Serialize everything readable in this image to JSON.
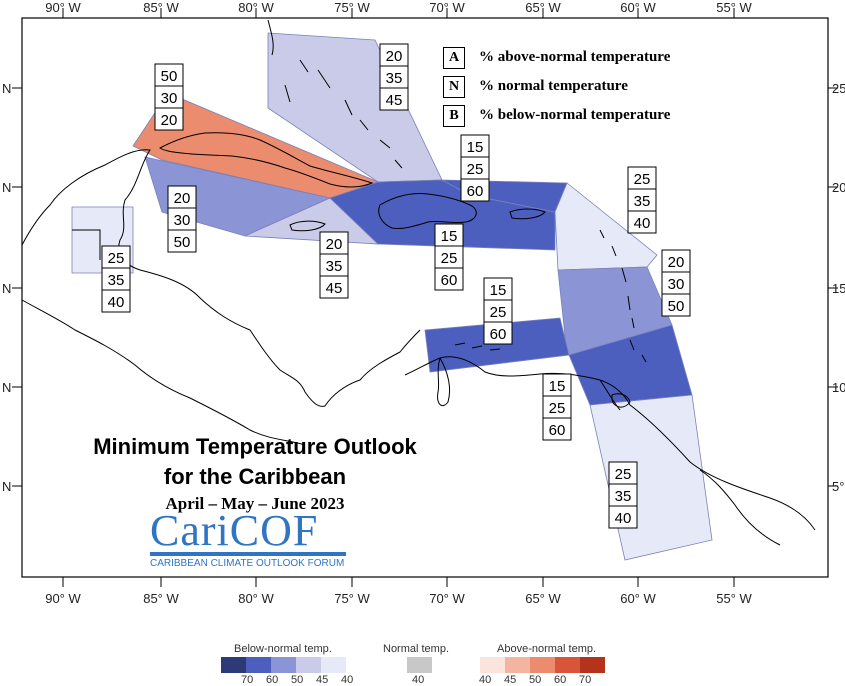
{
  "map": {
    "top_lon_labels": [
      "90° W",
      "85° W",
      "80° W",
      "75° W",
      "70° W",
      "65° W",
      "60° W",
      "55° W"
    ],
    "bottom_lon_labels": [
      "90° W",
      "85° W",
      "80° W",
      "75° W",
      "70° W",
      "65° W",
      "60° W",
      "55° W"
    ],
    "left_lat_labels": [
      "N",
      "N",
      "N",
      "N",
      "N"
    ],
    "right_lat_labels": [
      "25",
      "20",
      "15",
      "10",
      "5°"
    ]
  },
  "key": {
    "rows": [
      {
        "letter": "A",
        "text": "% above-normal temperature"
      },
      {
        "letter": "N",
        "text": "% normal temperature"
      },
      {
        "letter": "B",
        "text": "% below-normal temperature"
      }
    ]
  },
  "regions": [
    {
      "name": "bahamas",
      "color": "#c9cbe8",
      "probs": [
        "20",
        "35",
        "45"
      ]
    },
    {
      "name": "cuba",
      "color": "#ec8c6e",
      "probs": [
        "50",
        "30",
        "20"
      ]
    },
    {
      "name": "hispaniola",
      "color": "#4c5fbf",
      "probs": [
        "15",
        "25",
        "60"
      ]
    },
    {
      "name": "jamaica-cayman",
      "color": "#8b95d6",
      "probs": [
        "20",
        "30",
        "50"
      ]
    },
    {
      "name": "jamaica-south",
      "color": "#c9cbe8",
      "probs": [
        "20",
        "35",
        "45"
      ]
    },
    {
      "name": "puerto-rico",
      "color": "#4c5fbf",
      "probs": [
        "15",
        "25",
        "60"
      ]
    },
    {
      "name": "northern-leewards",
      "color": "#e6eaf8",
      "probs": [
        "25",
        "35",
        "40"
      ]
    },
    {
      "name": "windwards",
      "color": "#8b95d6",
      "probs": [
        "20",
        "30",
        "50"
      ]
    },
    {
      "name": "belize",
      "color": "#e6eaf8",
      "probs": [
        "25",
        "35",
        "40"
      ]
    },
    {
      "name": "abc-islands",
      "color": "#4c5fbf",
      "probs": [
        "15",
        "25",
        "60"
      ]
    },
    {
      "name": "trinidad-tobago",
      "color": "#4c5fbf",
      "probs": [
        "15",
        "25",
        "60"
      ]
    },
    {
      "name": "guianas",
      "color": "#e6eaf8",
      "probs": [
        "25",
        "35",
        "40"
      ]
    }
  ],
  "title": {
    "line1": "Minimum Temperature Outlook",
    "line2": "for the Caribbean",
    "dates": "April – May – June 2023"
  },
  "logo": {
    "word_part1": "Cari",
    "word_part2": "COF",
    "subtitle": "CARIBBEAN CLIMATE OUTLOOK FORUM"
  },
  "colorbar": {
    "below": {
      "title": "Below-normal temp.",
      "colors": [
        "#2e3a78",
        "#4c5fbf",
        "#8b95d6",
        "#c9cbe8",
        "#e6eaf8"
      ],
      "ticks": [
        "70",
        "60",
        "50",
        "45",
        "40"
      ]
    },
    "normal": {
      "title": "Normal temp.",
      "color": "#c8c8c8",
      "tick": "40"
    },
    "above": {
      "title": "Above-normal temp.",
      "colors": [
        "#fbe4dc",
        "#f3b5a0",
        "#ec8c6e",
        "#d9553a",
        "#b5321c"
      ],
      "ticks": [
        "40",
        "45",
        "50",
        "60",
        "70"
      ]
    }
  }
}
